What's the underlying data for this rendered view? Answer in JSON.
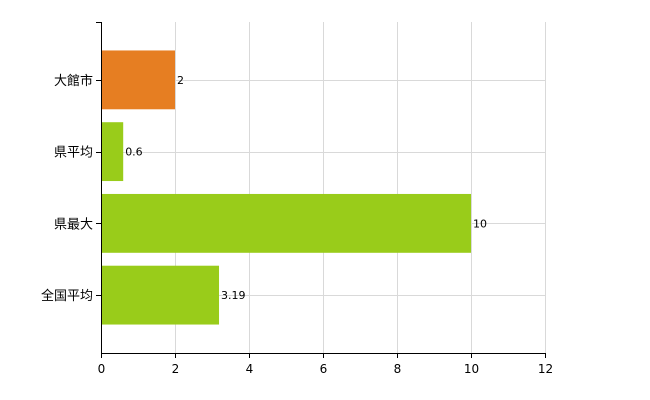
{
  "chart_data": {
    "type": "bar",
    "orientation": "horizontal",
    "categories": [
      "大館市",
      "県平均",
      "県最大",
      "全国平均"
    ],
    "values": [
      2,
      0.6,
      10,
      3.19
    ],
    "value_labels": [
      "2",
      "0.6",
      "10",
      "3.19"
    ],
    "bar_colors": [
      "#e67e22",
      "#99cc1a",
      "#99cc1a",
      "#99cc1a"
    ],
    "xlim": [
      0,
      12
    ],
    "xticks": [
      0,
      2,
      4,
      6,
      8,
      10,
      12
    ],
    "grid": true,
    "title": "",
    "xlabel": "",
    "ylabel": ""
  },
  "colors": {
    "highlight": "#e67e22",
    "default_bar": "#99cc1a",
    "grid": "#d9d9d9",
    "axis": "#000000"
  }
}
